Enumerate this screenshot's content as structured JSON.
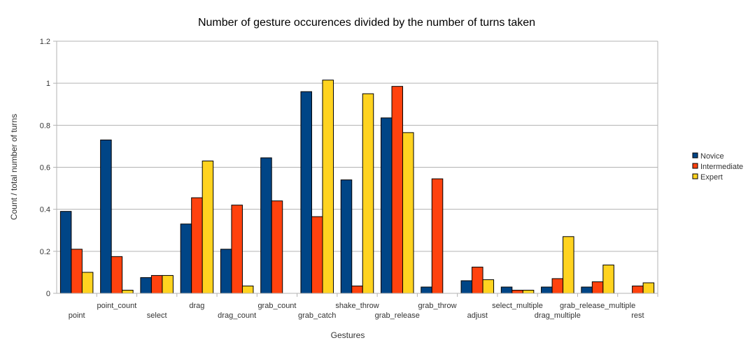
{
  "chart_data": {
    "type": "bar",
    "title": "Number of gesture occurences divided by the number of turns taken",
    "xlabel": "Gestures",
    "ylabel": "Count / total number of turns",
    "ylim": [
      0,
      1.2
    ],
    "yticks": [
      "0",
      "0.2",
      "0.4",
      "0.6",
      "0.8",
      "1",
      "1.2"
    ],
    "grid": true,
    "legend_position": "right",
    "categories": [
      "point",
      "point_count",
      "select",
      "drag",
      "drag_count",
      "grab_count",
      "grab_catch",
      "shake_throw",
      "grab_release",
      "grab_throw",
      "adjust",
      "select_multiple",
      "drag_multiple",
      "grab_release_multiple",
      "rest"
    ],
    "series": [
      {
        "name": "Novice",
        "color": "#004586",
        "values": [
          0.39,
          0.73,
          0.075,
          0.33,
          0.21,
          0.645,
          0.96,
          0.54,
          0.835,
          0.03,
          0.06,
          0.03,
          0.03,
          0.03,
          0
        ]
      },
      {
        "name": "Intermediate",
        "color": "#ff420e",
        "values": [
          0.21,
          0.175,
          0.085,
          0.455,
          0.42,
          0.44,
          0.365,
          0.035,
          0.985,
          0.545,
          0.125,
          0.015,
          0.07,
          0.055,
          0.035
        ]
      },
      {
        "name": "Expert",
        "color": "#ffd320",
        "values": [
          0.1,
          0.015,
          0.085,
          0.63,
          0.035,
          0,
          1.015,
          0.95,
          0.765,
          0,
          0.065,
          0.015,
          0.27,
          0.135,
          0.05
        ]
      }
    ]
  }
}
